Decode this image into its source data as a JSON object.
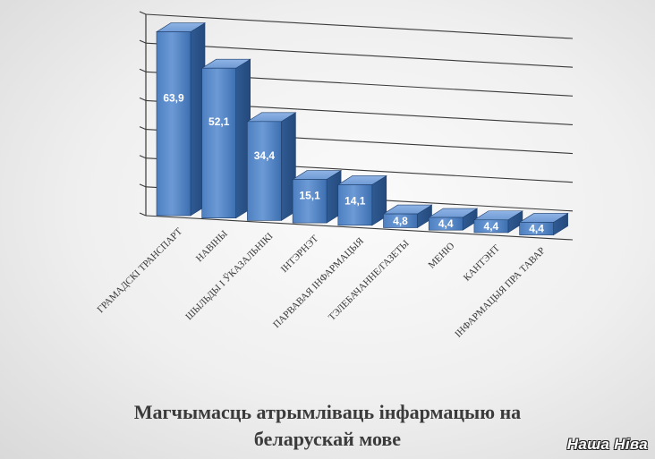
{
  "chart_data": {
    "type": "bar",
    "title": "Магчымасць атрымліваць інфармацыю на беларускай мове",
    "categories": [
      "ГРАМАДСКІ ТРАНСПАРТ",
      "НАВІНЫ",
      "ШЫЛЬДЫ І ЎКАЗАЛЬНІКІ",
      "ІНТЭРНЭТ",
      "ПАРВАВАЯ ІНФАРМАЦЫЯ",
      "ТЭЛЕБАЧАННЕ/ГАЗЕТЫ",
      "МЕНЮ",
      "КАНТЭНТ",
      "ІНФАРМАЦЫЯ ПРА ТАВАР"
    ],
    "values": [
      63.9,
      52.1,
      34.4,
      15.1,
      14.1,
      4.8,
      4.4,
      4.4,
      4.4
    ],
    "value_labels": [
      "63,9",
      "52,1",
      "34,4",
      "15,1",
      "14,1",
      "4,8",
      "4,4",
      "4,4",
      "4,4"
    ],
    "ylim": [
      0,
      70
    ],
    "grid": true,
    "xlabel": "",
    "ylabel": "",
    "bar_color": "#4f81bd"
  },
  "caption_line1": "Магчымасць атрымліваць інфармацыю на",
  "caption_line2": "беларускай мове",
  "logo_text": "Наша Ніва"
}
